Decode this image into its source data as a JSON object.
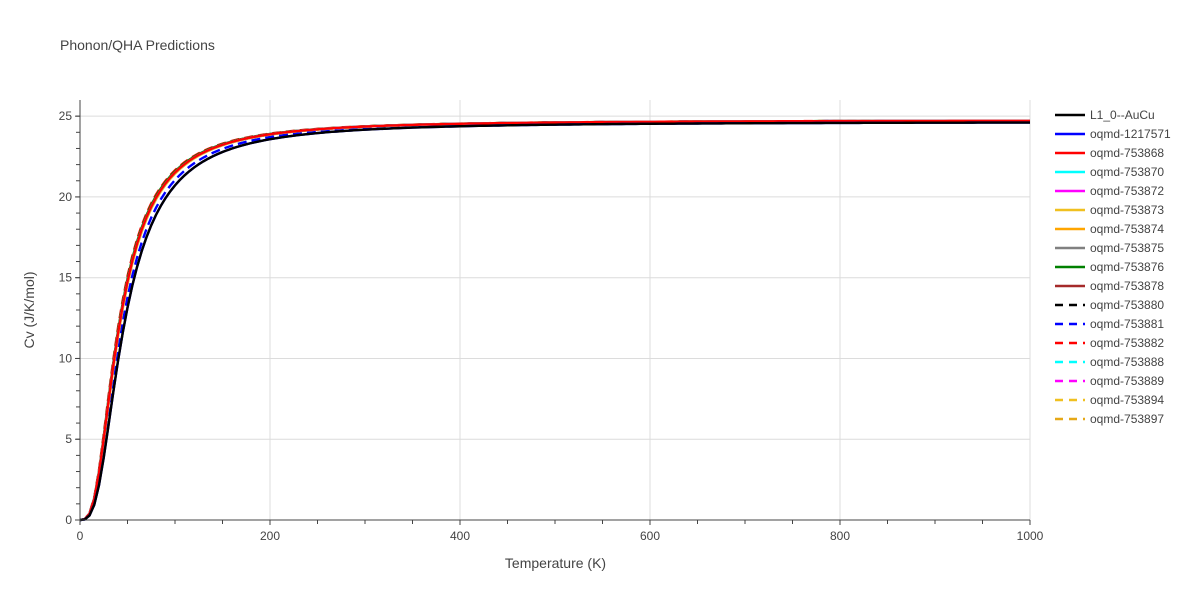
{
  "chart_data": {
    "type": "line",
    "title": "Phonon/QHA Predictions",
    "xlabel": "Temperature (K)",
    "ylabel": "Cv (J/K/mol)",
    "xlim": [
      0,
      1000
    ],
    "ylim": [
      0,
      26
    ],
    "x_ticks": [
      0,
      200,
      400,
      600,
      800,
      1000
    ],
    "y_ticks": [
      0,
      5,
      10,
      15,
      20,
      25
    ],
    "grid": true,
    "legend_position": "right",
    "series": [
      {
        "name": "L1_0--AuCu",
        "color": "#000000",
        "dash": "solid",
        "theta": 190,
        "limit": 24.65
      },
      {
        "name": "oqmd-1217571",
        "color": "#0000ff",
        "dash": "solid",
        "theta": 190,
        "limit": 24.65
      },
      {
        "name": "oqmd-753868",
        "color": "#ff0000",
        "dash": "solid",
        "theta": 170,
        "limit": 24.75
      },
      {
        "name": "oqmd-753870",
        "color": "#00ffff",
        "dash": "solid",
        "theta": 170,
        "limit": 24.75
      },
      {
        "name": "oqmd-753872",
        "color": "#ff00ff",
        "dash": "solid",
        "theta": 170,
        "limit": 24.75
      },
      {
        "name": "oqmd-753873",
        "color": "#f0c020",
        "dash": "solid",
        "theta": 172,
        "limit": 24.75
      },
      {
        "name": "oqmd-753874",
        "color": "#ffa500",
        "dash": "solid",
        "theta": 172,
        "limit": 24.75
      },
      {
        "name": "oqmd-753875",
        "color": "#808080",
        "dash": "solid",
        "theta": 171,
        "limit": 24.75
      },
      {
        "name": "oqmd-753876",
        "color": "#008000",
        "dash": "solid",
        "theta": 168,
        "limit": 24.75
      },
      {
        "name": "oqmd-753878",
        "color": "#a52a2a",
        "dash": "solid",
        "theta": 171,
        "limit": 24.75
      },
      {
        "name": "oqmd-753880",
        "color": "#000000",
        "dash": "dash",
        "theta": 171,
        "limit": 24.75
      },
      {
        "name": "oqmd-753881",
        "color": "#0000ff",
        "dash": "dash",
        "theta": 182,
        "limit": 24.7
      },
      {
        "name": "oqmd-753882",
        "color": "#ff0000",
        "dash": "dash",
        "theta": 166,
        "limit": 24.75
      },
      {
        "name": "oqmd-753888",
        "color": "#00ffff",
        "dash": "dash",
        "theta": 170,
        "limit": 24.75
      },
      {
        "name": "oqmd-753889",
        "color": "#ff00ff",
        "dash": "dash",
        "theta": 170,
        "limit": 24.75
      },
      {
        "name": "oqmd-753894",
        "color": "#f0c020",
        "dash": "dash",
        "theta": 170,
        "limit": 24.75
      },
      {
        "name": "oqmd-753897",
        "color": "#e6a817",
        "dash": "dash",
        "theta": 169,
        "limit": 24.75
      }
    ]
  }
}
